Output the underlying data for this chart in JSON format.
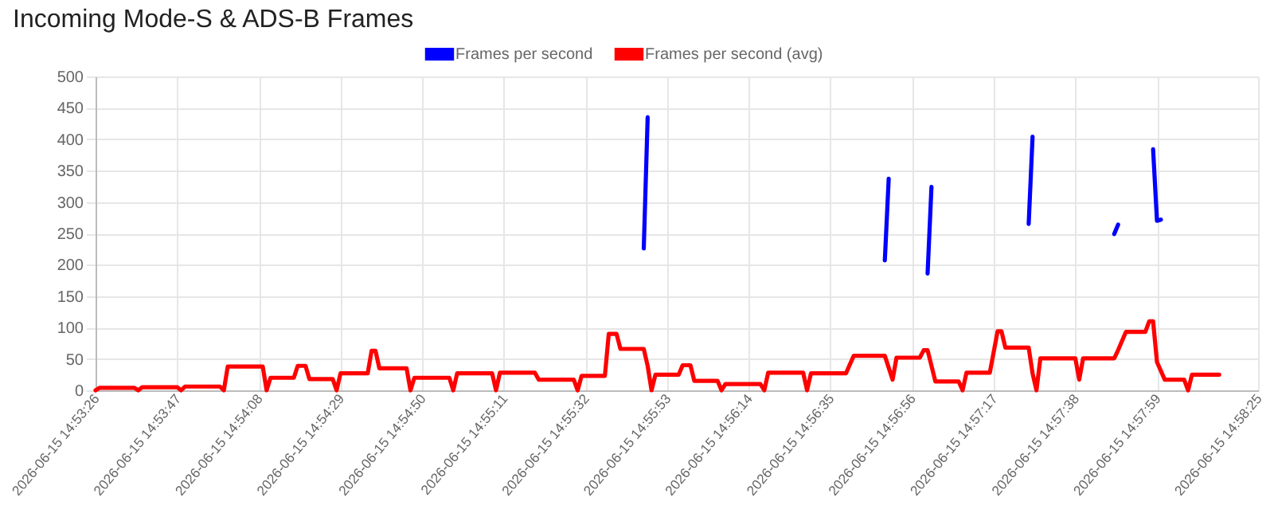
{
  "chart_data": {
    "type": "line",
    "title": "Incoming Mode-S & ADS-B Frames",
    "legend": "top",
    "grid": true,
    "marker": "none",
    "line_style": "solid",
    "xlim": [
      "2026-06-15T14:53:26",
      "2026-06-15T14:58:25"
    ],
    "xticks": [
      {
        "value": "2026-06-15T14:53:26",
        "label": "2026-06-15 14:53:26"
      },
      {
        "value": "2026-06-15T14:53:47",
        "label": "2026-06-15 14:53:47"
      },
      {
        "value": "2026-06-15T14:54:08",
        "label": "2026-06-15 14:54:08"
      },
      {
        "value": "2026-06-15T14:54:29",
        "label": "2026-06-15 14:54:29"
      },
      {
        "value": "2026-06-15T14:54:50",
        "label": "2026-06-15 14:54:50"
      },
      {
        "value": "2026-06-15T14:55:11",
        "label": "2026-06-15 14:55:11"
      },
      {
        "value": "2026-06-15T14:55:32",
        "label": "2026-06-15 14:55:32"
      },
      {
        "value": "2026-06-15T14:55:53",
        "label": "2026-06-15 14:55:53"
      },
      {
        "value": "2026-06-15T14:56:14",
        "label": "2026-06-15 14:56:14"
      },
      {
        "value": "2026-06-15T14:56:35",
        "label": "2026-06-15 14:56:35"
      },
      {
        "value": "2026-06-15T14:56:56",
        "label": "2026-06-15 14:56:56"
      },
      {
        "value": "2026-06-15T14:57:17",
        "label": "2026-06-15 14:57:17"
      },
      {
        "value": "2026-06-15T14:57:38",
        "label": "2026-06-15 14:57:38"
      },
      {
        "value": "2026-06-15T14:57:59",
        "label": "2026-06-15 14:57:59"
      },
      {
        "value": "2026-06-15T14:58:25",
        "label": "2026-06-15 14:58:25"
      }
    ],
    "ylim": [
      0,
      500
    ],
    "yticks": [
      0,
      50,
      100,
      150,
      200,
      250,
      300,
      350,
      400,
      450,
      500
    ],
    "series": [
      {
        "name": "Frames per second",
        "color": "#0000ff",
        "type": "line",
        "x": [
          "2026-06-15T14:55:47",
          "2026-06-15T14:55:48",
          "2026-06-15T14:56:20",
          "2026-06-15T14:56:49",
          "2026-06-15T14:56:50",
          "2026-06-15T14:56:55",
          "2026-06-15T14:57:00",
          "2026-06-15T14:57:01",
          "2026-06-15T14:57:10",
          "2026-06-15T14:57:26",
          "2026-06-15T14:57:27",
          "2026-06-15T14:57:35",
          "2026-06-15T14:57:48",
          "2026-06-15T14:57:49",
          "2026-06-15T14:57:53",
          "2026-06-15T14:57:58",
          "2026-06-15T14:57:59",
          "2026-06-15T14:58:00"
        ],
        "values": [
          226,
          435,
          null,
          207,
          337,
          null,
          186,
          324,
          null,
          265,
          404,
          null,
          249,
          264,
          null,
          384,
          270,
          272
        ]
      },
      {
        "name": "Frames per second (avg)",
        "color": "#ff0000",
        "type": "line",
        "x": [
          "2026-06-15T14:53:26",
          "2026-06-15T14:53:27",
          "2026-06-15T14:53:36",
          "2026-06-15T14:53:37",
          "2026-06-15T14:53:38",
          "2026-06-15T14:53:47",
          "2026-06-15T14:53:48",
          "2026-06-15T14:53:49",
          "2026-06-15T14:53:58",
          "2026-06-15T14:53:59",
          "2026-06-15T14:54:00",
          "2026-06-15T14:54:09",
          "2026-06-15T14:54:10",
          "2026-06-15T14:54:11",
          "2026-06-15T14:54:17",
          "2026-06-15T14:54:18",
          "2026-06-15T14:54:20",
          "2026-06-15T14:54:21",
          "2026-06-15T14:54:27",
          "2026-06-15T14:54:28",
          "2026-06-15T14:54:29",
          "2026-06-15T14:54:36",
          "2026-06-15T14:54:37",
          "2026-06-15T14:54:38",
          "2026-06-15T14:54:39",
          "2026-06-15T14:54:46",
          "2026-06-15T14:54:47",
          "2026-06-15T14:54:48",
          "2026-06-15T14:54:57",
          "2026-06-15T14:54:58",
          "2026-06-15T14:54:59",
          "2026-06-15T14:55:08",
          "2026-06-15T14:55:09",
          "2026-06-15T14:55:10",
          "2026-06-15T14:55:19",
          "2026-06-15T14:55:20",
          "2026-06-15T14:55:29",
          "2026-06-15T14:55:30",
          "2026-06-15T14:55:31",
          "2026-06-15T14:55:37",
          "2026-06-15T14:55:38",
          "2026-06-15T14:55:40",
          "2026-06-15T14:55:41",
          "2026-06-15T14:55:47",
          "2026-06-15T14:55:48",
          "2026-06-15T14:55:49",
          "2026-06-15T14:55:50",
          "2026-06-15T14:55:56",
          "2026-06-15T14:55:57",
          "2026-06-15T14:55:59",
          "2026-06-15T14:56:00",
          "2026-06-15T14:56:06",
          "2026-06-15T14:56:07",
          "2026-06-15T14:56:08",
          "2026-06-15T14:56:17",
          "2026-06-15T14:56:18",
          "2026-06-15T14:56:19",
          "2026-06-15T14:56:28",
          "2026-06-15T14:56:29",
          "2026-06-15T14:56:30",
          "2026-06-15T14:56:39",
          "2026-06-15T14:56:41",
          "2026-06-15T14:56:49",
          "2026-06-15T14:56:51",
          "2026-06-15T14:56:52",
          "2026-06-15T14:56:58",
          "2026-06-15T14:56:59",
          "2026-06-15T14:57:00",
          "2026-06-15T14:57:02",
          "2026-06-15T14:57:08",
          "2026-06-15T14:57:09",
          "2026-06-15T14:57:10",
          "2026-06-15T14:57:16",
          "2026-06-15T14:57:18",
          "2026-06-15T14:57:19",
          "2026-06-15T14:57:20",
          "2026-06-15T14:57:26",
          "2026-06-15T14:57:27",
          "2026-06-15T14:57:28",
          "2026-06-15T14:57:29",
          "2026-06-15T14:57:38",
          "2026-06-15T14:57:39",
          "2026-06-15T14:57:40",
          "2026-06-15T14:57:48",
          "2026-06-15T14:57:49",
          "2026-06-15T14:57:51",
          "2026-06-15T14:57:56",
          "2026-06-15T14:57:57",
          "2026-06-15T14:57:58",
          "2026-06-15T14:57:59",
          "2026-06-15T14:58:01",
          "2026-06-15T14:58:06",
          "2026-06-15T14:58:07",
          "2026-06-15T14:58:08",
          "2026-06-15T14:58:15"
        ],
        "values": [
          0,
          4,
          4,
          0,
          5,
          5,
          0,
          6,
          6,
          0,
          38,
          38,
          0,
          20,
          20,
          39,
          39,
          18,
          18,
          0,
          27,
          27,
          63,
          63,
          35,
          35,
          0,
          20,
          20,
          0,
          27,
          27,
          0,
          28,
          28,
          17,
          17,
          0,
          23,
          23,
          90,
          90,
          66,
          66,
          39,
          0,
          25,
          25,
          40,
          40,
          15,
          15,
          0,
          10,
          10,
          0,
          28,
          28,
          0,
          27,
          27,
          55,
          55,
          17,
          52,
          52,
          64,
          64,
          14,
          14,
          0,
          28,
          28,
          94,
          94,
          68,
          68,
          27,
          0,
          51,
          51,
          17,
          51,
          51,
          64,
          93,
          93,
          110,
          110,
          45,
          17,
          17,
          0,
          25,
          25
        ]
      }
    ]
  }
}
